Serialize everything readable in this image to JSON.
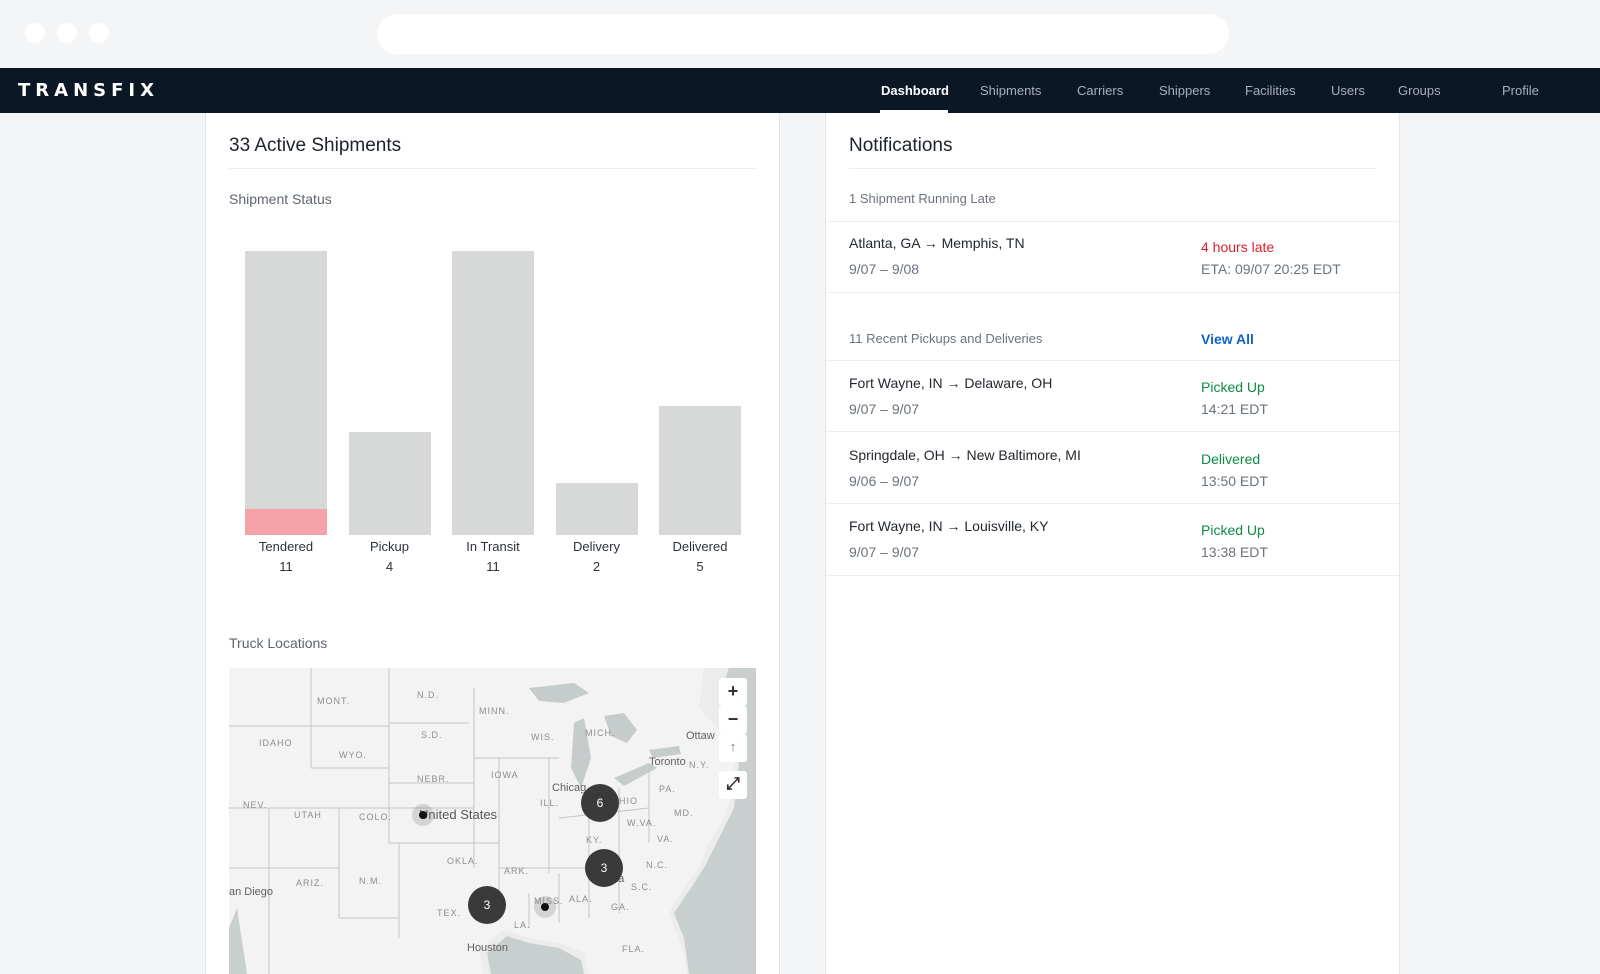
{
  "app": {
    "logo": "TRANSFIX"
  },
  "nav": {
    "items": [
      {
        "label": "Dashboard",
        "active": true
      },
      {
        "label": "Shipments"
      },
      {
        "label": "Carriers"
      },
      {
        "label": "Shippers"
      },
      {
        "label": "Facilities"
      },
      {
        "label": "Users"
      },
      {
        "label": "Groups"
      },
      {
        "label": "Profile"
      }
    ]
  },
  "left": {
    "title": "33 Active Shipments",
    "status_heading": "Shipment Status",
    "map_heading": "Truck Locations"
  },
  "chart_data": {
    "type": "bar",
    "categories": [
      "Tendered",
      "Pickup",
      "In Transit",
      "Delivery",
      "Delivered"
    ],
    "values": [
      11,
      4,
      11,
      2,
      5
    ],
    "highlighted": {
      "category": "Tendered",
      "value": 1,
      "color": "#f5a3a8"
    },
    "bar_color": "#d7d8d8",
    "title": "",
    "xlabel": "",
    "ylabel": "",
    "ylim": [
      0,
      11
    ],
    "grid": false
  },
  "map": {
    "region_labels": [
      "MONT.",
      "N.D.",
      "MINN.",
      "IDAHO",
      "S.D.",
      "WYO.",
      "WIS.",
      "MICH.",
      "NEBR.",
      "IOWA",
      "NEV.",
      "UTAH",
      "COLO.",
      "ILL.",
      "OHIO",
      "PA.",
      "N.Y.",
      "MD.",
      "W.VA.",
      "KY.",
      "VA.",
      "OKLA.",
      "ARK.",
      "N.C.",
      "ARIZ.",
      "N.M.",
      "S.C.",
      "TEX.",
      "ALA.",
      "GA.",
      "LA.",
      "MISS.",
      "FLA."
    ],
    "cities": [
      "Ottaw",
      "Toronto",
      "Chicag",
      "United States",
      "an Diego",
      "Houston",
      "nta"
    ],
    "clusters": [
      "6",
      "3",
      "3"
    ],
    "controls": {
      "zoom_in": "+",
      "zoom_out": "−",
      "compass": "↑",
      "fullscreen": "⤢"
    }
  },
  "notifications": {
    "title": "Notifications",
    "late": {
      "heading": "1 Shipment Running Late",
      "items": [
        {
          "route": "Atlanta, GA → Memphis, TN",
          "dates": "9/07 – 9/08",
          "status": "4 hours late",
          "eta": "ETA: 09/07 20:25 EDT"
        }
      ]
    },
    "recent": {
      "heading": "11 Recent Pickups and Deliveries",
      "view_all": "View All",
      "items": [
        {
          "route": "Fort Wayne, IN → Delaware, OH",
          "dates": "9/07 – 9/07",
          "status": "Picked Up",
          "time": "14:21 EDT"
        },
        {
          "route": "Springdale, OH → New Baltimore, MI",
          "dates": "9/06 – 9/07",
          "status": "Delivered",
          "time": "13:50 EDT"
        },
        {
          "route": "Fort Wayne, IN → Louisville, KY",
          "dates": "9/07 – 9/07",
          "status": "Picked Up",
          "time": "13:38 EDT"
        }
      ]
    }
  }
}
